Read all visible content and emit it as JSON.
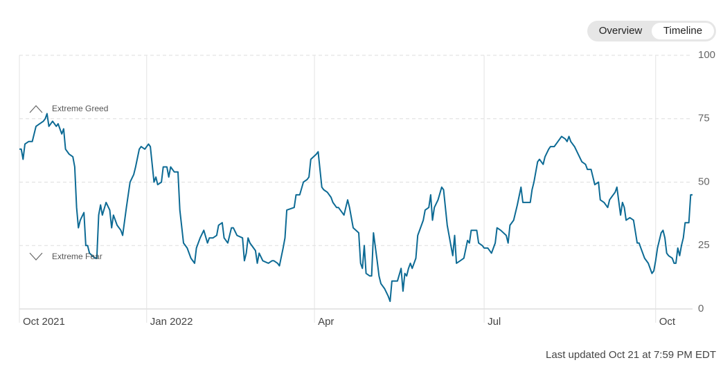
{
  "chart_data": {
    "type": "line",
    "color": "#0c6a94",
    "x": [
      0,
      1,
      2,
      3,
      5,
      7,
      9,
      11,
      13,
      14,
      15,
      16,
      18,
      20,
      21,
      23,
      24,
      25,
      27,
      29,
      30,
      31,
      32,
      33,
      35,
      36,
      37,
      38,
      41,
      42,
      43,
      44,
      45,
      47,
      49,
      50,
      51,
      53,
      55,
      56,
      58,
      60,
      62,
      63,
      65,
      66,
      68,
      70,
      71,
      73,
      74,
      75,
      77,
      78,
      80,
      81,
      82,
      84,
      86,
      87,
      89,
      91,
      93,
      95,
      96,
      98,
      100,
      102,
      103,
      105,
      107,
      108,
      110,
      111,
      113,
      115,
      116,
      118,
      121,
      122,
      123,
      124,
      125,
      128,
      129,
      130,
      132,
      135,
      137,
      138,
      140,
      141,
      143,
      144,
      145,
      149,
      150,
      152,
      154,
      156,
      157,
      158,
      161,
      162,
      164,
      165,
      167,
      169,
      170,
      172,
      173,
      176,
      178,
      179,
      181,
      184,
      185,
      186,
      187,
      188,
      190,
      191,
      192,
      194,
      195,
      196,
      198,
      200,
      201,
      202,
      205,
      207,
      208,
      209,
      210,
      211,
      212,
      213,
      215,
      216,
      219,
      220,
      222,
      223,
      224,
      225,
      227,
      229,
      230,
      232,
      234,
      235,
      236,
      237,
      239,
      241,
      243,
      244,
      245,
      248,
      249,
      251,
      252,
      254,
      256,
      258,
      259,
      261,
      264,
      265,
      266,
      268,
      270,
      272,
      273,
      277,
      278,
      279,
      281,
      282,
      284,
      285,
      287,
      288,
      290,
      292,
      294,
      296,
      297,
      298,
      299,
      301,
      303,
      305,
      307,
      308,
      310,
      311,
      312,
      314,
      315,
      317,
      319,
      320,
      321,
      323,
      324,
      326,
      327,
      328,
      329,
      331,
      333,
      335,
      336,
      337,
      339,
      341,
      343,
      344,
      345,
      346,
      348,
      349,
      350,
      351,
      352,
      354,
      355,
      356,
      357,
      358,
      359,
      360,
      361,
      363,
      364,
      365
    ],
    "values": [
      63,
      63,
      59,
      65,
      66,
      66,
      72,
      73,
      74,
      75,
      77,
      72,
      74,
      72,
      73,
      69,
      71,
      63,
      61,
      60,
      56,
      40,
      32,
      35,
      38,
      25,
      25,
      22,
      20,
      20,
      37,
      41,
      37,
      42,
      39,
      32,
      37,
      33,
      31,
      29,
      40,
      50,
      53,
      56,
      63,
      64,
      63,
      65,
      64,
      50,
      52,
      49,
      50,
      56,
      56,
      52,
      56,
      54,
      54,
      39,
      26,
      24,
      20,
      18,
      24,
      28,
      31,
      26,
      28,
      28,
      29,
      33,
      34,
      28,
      26,
      32,
      32,
      29,
      28,
      19,
      22,
      28,
      26,
      23,
      18,
      22,
      19,
      18,
      19,
      19,
      18,
      17,
      24,
      28,
      39,
      40,
      45,
      45,
      50,
      51,
      52,
      59,
      61,
      62,
      48,
      47,
      46,
      44,
      42,
      40,
      40,
      37,
      43,
      40,
      32,
      30,
      18,
      16,
      25,
      14,
      13,
      13,
      30,
      19,
      13,
      10,
      8,
      5,
      3,
      11,
      11,
      16,
      7,
      14,
      13,
      16,
      18,
      16,
      20,
      29,
      35,
      39,
      40,
      45,
      35,
      40,
      43,
      48,
      47,
      33,
      25,
      21,
      29,
      18,
      19,
      20,
      27,
      26,
      31,
      31,
      26,
      25,
      24,
      24,
      22,
      26,
      32,
      31,
      29,
      26,
      33,
      35,
      41,
      48,
      42,
      42,
      47,
      50,
      58,
      59,
      57,
      60,
      63,
      64,
      64,
      66,
      68,
      67,
      66,
      68,
      66,
      64,
      61,
      58,
      57,
      55,
      55,
      52,
      49,
      50,
      43,
      42,
      40,
      43,
      44,
      46,
      48,
      37,
      42,
      40,
      35,
      36,
      35,
      26,
      26,
      24,
      20,
      18,
      14,
      15,
      19,
      24,
      30,
      31,
      28,
      22,
      21,
      20,
      18,
      18,
      24,
      21,
      25,
      28,
      34,
      34,
      45,
      45
    ],
    "xlim": [
      0,
      365
    ],
    "xticks": [
      {
        "value": 0,
        "label": "Oct 2021"
      },
      {
        "value": 69,
        "label": "Jan 2022"
      },
      {
        "value": 160,
        "label": "Apr"
      },
      {
        "value": 252,
        "label": "Jul"
      },
      {
        "value": 345,
        "label": "Oct"
      }
    ],
    "ylim": [
      0,
      100
    ],
    "yticks": [
      0,
      25,
      50,
      75,
      100
    ],
    "grid": true,
    "annotations": [
      "Extreme Greed",
      "Extreme Fear"
    ]
  },
  "tabs": [
    "Overview",
    "Timeline"
  ],
  "active_tab": 1,
  "footer": "Last updated Oct 21 at 7:59 PM EDT"
}
